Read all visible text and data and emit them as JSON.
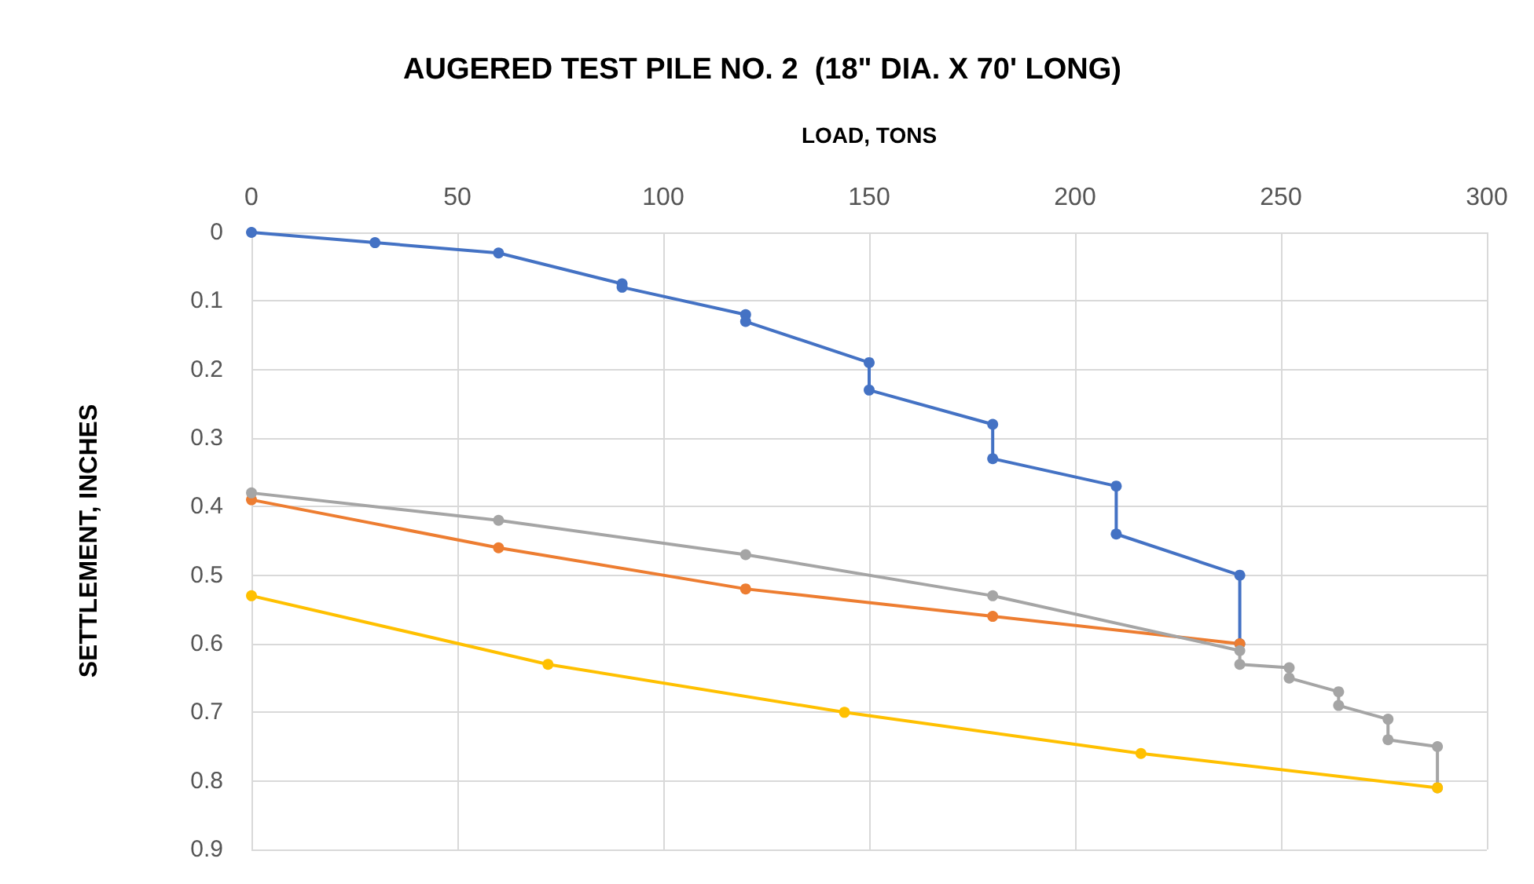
{
  "chart_data": {
    "type": "line",
    "title": "AUGERED TEST PILE NO. 2  (18\" DIA. X 70' LONG)",
    "xlabel": "LOAD, TONS",
    "ylabel": "SETTLEMENT, INCHES",
    "xlim": [
      0,
      300
    ],
    "xticks": [
      0,
      50,
      100,
      150,
      200,
      250,
      300
    ],
    "ylim": [
      0.9,
      0
    ],
    "yticks": [
      0,
      0.1,
      0.2,
      0.3,
      0.4,
      0.5,
      0.6,
      0.7,
      0.8,
      0.9
    ],
    "grid": true,
    "marker": "circle",
    "line_style": "solid",
    "series": [
      {
        "color": "#4472c4",
        "x": [
          0,
          30,
          60,
          90,
          90,
          120,
          120,
          150,
          150,
          180,
          180,
          210,
          210,
          240,
          240
        ],
        "values": [
          0,
          0.015,
          0.03,
          0.075,
          0.08,
          0.12,
          0.13,
          0.19,
          0.23,
          0.28,
          0.33,
          0.37,
          0.44,
          0.5,
          0.6
        ]
      },
      {
        "color": "#ed7d31",
        "x": [
          0,
          60,
          120,
          180,
          240
        ],
        "values": [
          0.39,
          0.46,
          0.52,
          0.56,
          0.6
        ]
      },
      {
        "color": "#a5a5a5",
        "x": [
          0,
          60,
          120,
          180,
          240,
          240,
          252,
          252,
          264,
          264,
          276,
          276,
          288,
          288
        ],
        "values": [
          0.38,
          0.42,
          0.47,
          0.53,
          0.61,
          0.63,
          0.635,
          0.65,
          0.67,
          0.69,
          0.71,
          0.74,
          0.75,
          0.81
        ]
      },
      {
        "color": "#ffc000",
        "x": [
          0,
          72,
          144,
          216,
          288
        ],
        "values": [
          0.53,
          0.63,
          0.7,
          0.76,
          0.81
        ]
      }
    ]
  }
}
